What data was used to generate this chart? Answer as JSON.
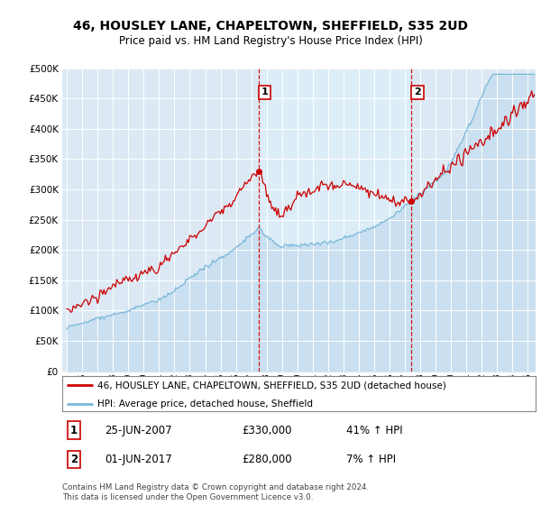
{
  "title": "46, HOUSLEY LANE, CHAPELTOWN, SHEFFIELD, S35 2UD",
  "subtitle": "Price paid vs. HM Land Registry's House Price Index (HPI)",
  "legend_line1": "46, HOUSLEY LANE, CHAPELTOWN, SHEFFIELD, S35 2UD (detached house)",
  "legend_line2": "HPI: Average price, detached house, Sheffield",
  "annotation1_date": "25-JUN-2007",
  "annotation1_price": "£330,000",
  "annotation1_hpi": "41% ↑ HPI",
  "annotation2_date": "01-JUN-2017",
  "annotation2_price": "£280,000",
  "annotation2_hpi": "7% ↑ HPI",
  "footer": "Contains HM Land Registry data © Crown copyright and database right 2024.\nThis data is licensed under the Open Government Licence v3.0.",
  "sale1_year": 2007.49,
  "sale1_value": 330000,
  "sale2_year": 2017.42,
  "sale2_value": 280000,
  "hpi_color": "#7ab8d9",
  "hpi_fill_color": "#c8dff0",
  "price_color": "#cc0000",
  "vline_color": "#cc0000",
  "plot_bg": "#dce9f5",
  "highlight_bg": "#dceaf5",
  "grid_color": "#ffffff",
  "ylim_min": 0,
  "ylim_max": 500000,
  "xmin": 1994.7,
  "xmax": 2025.5
}
